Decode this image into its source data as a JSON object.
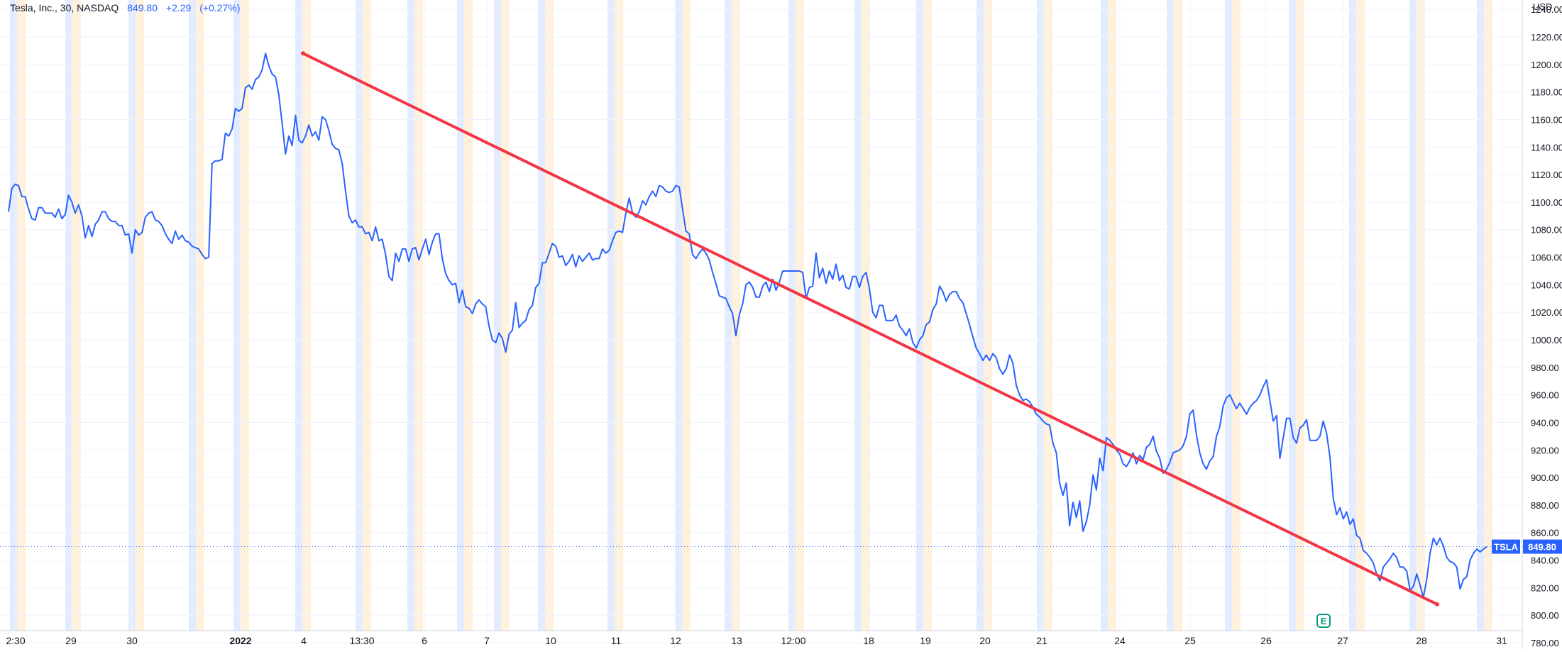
{
  "header": {
    "symbol_name": "Tesla, Inc., 30, NASDAQ",
    "last": "849.80",
    "change": "+2.29",
    "change_pct": "(+0.27%)"
  },
  "price_tag": {
    "symbol": "TSLA",
    "value": "849.80"
  },
  "colors": {
    "series": "#2962ff",
    "trendline": "#f23645",
    "premarket": "#e3ecff",
    "afterhours": "#fff1dc",
    "grid": "#f0f3fa"
  },
  "chart_data": {
    "type": "line",
    "series": [
      {
        "name": "TSLA",
        "values": [
          1093,
          1110,
          1113,
          1112,
          1104,
          1104,
          1095,
          1088,
          1087,
          1096,
          1096,
          1092,
          1092,
          1092,
          1089,
          1095,
          1088,
          1091,
          1105,
          1100,
          1092,
          1098,
          1090,
          1074,
          1083,
          1075,
          1084,
          1087,
          1093,
          1093,
          1088,
          1086,
          1086,
          1083,
          1083,
          1076,
          1077,
          1063,
          1080,
          1076,
          1078,
          1089,
          1092,
          1093,
          1087,
          1086,
          1083,
          1077,
          1073,
          1070,
          1079,
          1073,
          1076,
          1072,
          1071,
          1068,
          1067,
          1066,
          1062,
          1059,
          1060,
          1128,
          1130,
          1130,
          1131,
          1150,
          1148,
          1153,
          1168,
          1166,
          1168,
          1183,
          1185,
          1182,
          1189,
          1191,
          1196,
          1208,
          1199,
          1193,
          1191,
          1178,
          1157,
          1135,
          1148,
          1141,
          1163,
          1145,
          1143,
          1148,
          1156,
          1148,
          1151,
          1145,
          1162,
          1160,
          1152,
          1142,
          1139,
          1138,
          1128,
          1108,
          1090,
          1085,
          1087,
          1082,
          1082,
          1077,
          1078,
          1072,
          1082,
          1072,
          1073,
          1062,
          1046,
          1043,
          1063,
          1057,
          1066,
          1066,
          1057,
          1066,
          1067,
          1058,
          1066,
          1073,
          1062,
          1071,
          1077,
          1077,
          1059,
          1048,
          1043,
          1040,
          1041,
          1027,
          1036,
          1024,
          1023,
          1019,
          1026,
          1029,
          1026,
          1024,
          1010,
          1000,
          998,
          1005,
          1001,
          991,
          1004,
          1007,
          1027,
          1009,
          1012,
          1014,
          1022,
          1025,
          1038,
          1041,
          1056,
          1056,
          1063,
          1070,
          1068,
          1060,
          1061,
          1054,
          1057,
          1062,
          1053,
          1061,
          1057,
          1060,
          1063,
          1058,
          1059,
          1059,
          1066,
          1063,
          1065,
          1072,
          1078,
          1079,
          1078,
          1092,
          1103,
          1092,
          1089,
          1093,
          1101,
          1098,
          1104,
          1108,
          1104,
          1112,
          1111,
          1108,
          1107,
          1108,
          1112,
          1111,
          1095,
          1079,
          1077,
          1062,
          1059,
          1063,
          1066,
          1063,
          1058,
          1049,
          1041,
          1032,
          1031,
          1030,
          1024,
          1019,
          1003,
          1018,
          1026,
          1040,
          1042,
          1038,
          1031,
          1031,
          1039,
          1042,
          1035,
          1044,
          1036,
          1042,
          1050,
          1050,
          1050,
          1050,
          1050,
          1050,
          1049,
          1030,
          1038,
          1039,
          1063,
          1045,
          1052,
          1041,
          1050,
          1044,
          1055,
          1043,
          1047,
          1038,
          1037,
          1046,
          1046,
          1038,
          1046,
          1049,
          1037,
          1020,
          1016,
          1025,
          1025,
          1014,
          1014,
          1014,
          1018,
          1010,
          1007,
          1003,
          1008,
          998,
          994,
          1000,
          1003,
          1011,
          1013,
          1022,
          1026,
          1039,
          1035,
          1028,
          1033,
          1035,
          1035,
          1030,
          1027,
          1019,
          1011,
          1002,
          994,
          990,
          985,
          989,
          985,
          990,
          987,
          979,
          975,
          979,
          989,
          983,
          967,
          960,
          956,
          957,
          955,
          951,
          946,
          944,
          941,
          939,
          938,
          925,
          918,
          896,
          887,
          896,
          865,
          882,
          871,
          883,
          861,
          868,
          880,
          902,
          891,
          914,
          905,
          929,
          927,
          924,
          920,
          917,
          910,
          908,
          912,
          918,
          910,
          916,
          913,
          922,
          924,
          930,
          919,
          914,
          903,
          906,
          911,
          918,
          919,
          920,
          923,
          930,
          946,
          949,
          931,
          918,
          910,
          906,
          912,
          915,
          930,
          937,
          952,
          958,
          960,
          955,
          950,
          954,
          950,
          946,
          951,
          954,
          956,
          960,
          966,
          971,
          956,
          941,
          945,
          914,
          929,
          943,
          943,
          929,
          925,
          936,
          938,
          942,
          927,
          927,
          927,
          930,
          941,
          932,
          915,
          885,
          873,
          878,
          870,
          875,
          866,
          870,
          858,
          856,
          847,
          845,
          842,
          838,
          830,
          825,
          835,
          838,
          841,
          845,
          842,
          835,
          835,
          832,
          818,
          821,
          830,
          822,
          813,
          826,
          845,
          856,
          851,
          856,
          850,
          842,
          839,
          838,
          835,
          819,
          826,
          828,
          840,
          845,
          848,
          846,
          848,
          849.8
        ]
      }
    ],
    "trendline": {
      "from": [
        "2022-01-04",
        1208
      ],
      "to": [
        "2022-01-28",
        808
      ]
    },
    "x_tick_labels": [
      "2:30",
      "29",
      "30",
      "2022",
      "4",
      "13:30",
      "6",
      "7",
      "10",
      "11",
      "12",
      "13",
      "12:00",
      "18",
      "19",
      "20",
      "21",
      "24",
      "25",
      "26",
      "27",
      "28",
      "31"
    ],
    "y_tick_labels": [
      "780.00",
      "800.00",
      "820.00",
      "840.00",
      "860.00",
      "880.00",
      "900.00",
      "920.00",
      "940.00",
      "960.00",
      "980.00",
      "1000.00",
      "1020.00",
      "1040.00",
      "1060.00",
      "1080.00",
      "1100.00",
      "1120.00",
      "1140.00",
      "1160.00",
      "1180.00",
      "1200.00",
      "1220.00",
      "1240.00"
    ],
    "ylabel": "USD",
    "ylim": [
      770,
      1250
    ],
    "last_price_line": 849.8,
    "annotations": [
      "E"
    ],
    "grid": true
  }
}
